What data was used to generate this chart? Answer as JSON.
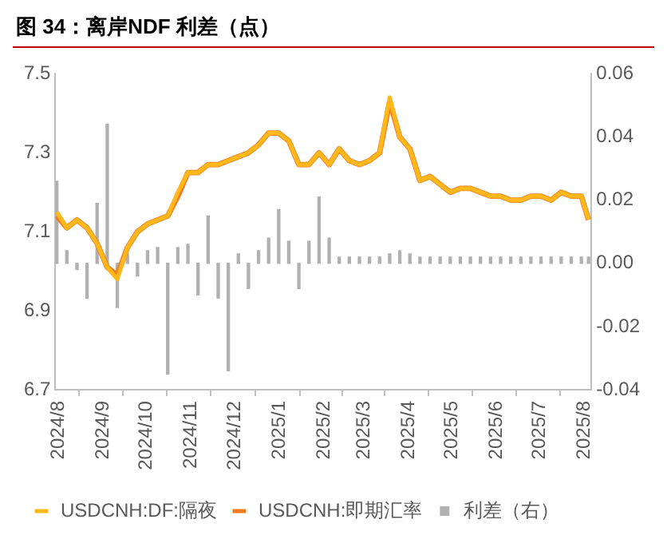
{
  "chart_data": {
    "type": "line",
    "title": "图 34：离岸NDF 利差（点）",
    "legend": "bottom",
    "grid": false,
    "marker": "none",
    "xlim": [
      "2024-07-31",
      "2025-08-07"
    ],
    "xticks": [
      {
        "value": "2024-08-01",
        "label": "2024/8"
      },
      {
        "value": "2024-09-01",
        "label": "2024/9"
      },
      {
        "value": "2024-10-01",
        "label": "2024/10"
      },
      {
        "value": "2024-11-01",
        "label": "2024/11"
      },
      {
        "value": "2024-12-01",
        "label": "2024/12"
      },
      {
        "value": "2025-01-01",
        "label": "2025/1"
      },
      {
        "value": "2025-02-01",
        "label": "2025/2"
      },
      {
        "value": "2025-03-01",
        "label": "2025/3"
      },
      {
        "value": "2025-04-01",
        "label": "2025/4"
      },
      {
        "value": "2025-05-01",
        "label": "2025/5"
      },
      {
        "value": "2025-06-01",
        "label": "2025/6"
      },
      {
        "value": "2025-07-01",
        "label": "2025/7"
      },
      {
        "value": "2025-08-01",
        "label": "2025/8"
      }
    ],
    "ylim": [
      6.7,
      7.5
    ],
    "yticks": [
      6.7,
      6.9,
      7.1,
      7.3,
      7.5
    ],
    "y2lim": [
      -0.04,
      0.06
    ],
    "y2ticks": [
      -0.04,
      -0.02,
      {
        "value": 0,
        "label": "0.00"
      },
      0.02,
      0.04,
      0.06
    ],
    "x": [
      "2024-08-01",
      "2024-08-08",
      "2024-08-15",
      "2024-08-22",
      "2024-08-29",
      "2024-09-05",
      "2024-09-12",
      "2024-09-19",
      "2024-09-26",
      "2024-10-03",
      "2024-10-10",
      "2024-10-17",
      "2024-10-24",
      "2024-10-31",
      "2024-11-07",
      "2024-11-14",
      "2024-11-21",
      "2024-11-28",
      "2024-12-05",
      "2024-12-12",
      "2024-12-19",
      "2024-12-26",
      "2025-01-02",
      "2025-01-09",
      "2025-01-16",
      "2025-01-23",
      "2025-01-30",
      "2025-02-06",
      "2025-02-13",
      "2025-02-20",
      "2025-02-27",
      "2025-03-06",
      "2025-03-13",
      "2025-03-20",
      "2025-03-27",
      "2025-04-03",
      "2025-04-10",
      "2025-04-17",
      "2025-04-24",
      "2025-05-01",
      "2025-05-08",
      "2025-05-15",
      "2025-05-22",
      "2025-05-29",
      "2025-06-05",
      "2025-06-12",
      "2025-06-19",
      "2025-06-26",
      "2025-07-03",
      "2025-07-10",
      "2025-07-17",
      "2025-07-24",
      "2025-07-31",
      "2025-08-05"
    ],
    "series": [
      {
        "name": "利差（右）",
        "type": "bar",
        "axis": "y2",
        "color": "#b0b0b0",
        "values": [
          0.026,
          0.004,
          -0.002,
          -0.011,
          0.019,
          0.044,
          -0.014,
          0.003,
          -0.004,
          0.004,
          0.005,
          -0.035,
          0.005,
          0.006,
          -0.01,
          0.015,
          -0.011,
          -0.034,
          0.003,
          -0.008,
          0.004,
          0.008,
          0.017,
          0.007,
          -0.008,
          0.007,
          0.021,
          0.008,
          0.002,
          0.002,
          0.002,
          0.002,
          0.002,
          0.003,
          0.004,
          0.003,
          0.002,
          0.002,
          0.002,
          0.002,
          0.002,
          0.002,
          0.002,
          0.002,
          0.002,
          0.002,
          0.002,
          0.002,
          0.002,
          0.002,
          0.002,
          0.002,
          0.002,
          0.002
        ]
      },
      {
        "name": "USDCNH:即期汇率",
        "color": "#f07c1e",
        "values": [
          7.14,
          7.11,
          7.13,
          7.11,
          7.07,
          7.01,
          6.99,
          7.06,
          7.1,
          7.12,
          7.13,
          7.14,
          7.19,
          7.25,
          7.25,
          7.27,
          7.27,
          7.28,
          7.29,
          7.3,
          7.32,
          7.35,
          7.35,
          7.33,
          7.27,
          7.27,
          7.3,
          7.27,
          7.31,
          7.28,
          7.27,
          7.28,
          7.3,
          7.43,
          7.34,
          7.31,
          7.23,
          7.24,
          7.22,
          7.2,
          7.21,
          7.21,
          7.2,
          7.19,
          7.19,
          7.18,
          7.18,
          7.19,
          7.19,
          7.18,
          7.2,
          7.19,
          7.19,
          7.13
        ]
      },
      {
        "name": "USDCNH:DF:隔夜",
        "color": "#ffb81c",
        "values": [
          7.15,
          7.11,
          7.13,
          7.11,
          7.07,
          7.01,
          6.98,
          7.06,
          7.1,
          7.12,
          7.13,
          7.14,
          7.2,
          7.25,
          7.25,
          7.27,
          7.27,
          7.28,
          7.29,
          7.3,
          7.32,
          7.35,
          7.35,
          7.33,
          7.27,
          7.27,
          7.3,
          7.27,
          7.31,
          7.28,
          7.27,
          7.28,
          7.3,
          7.44,
          7.34,
          7.31,
          7.23,
          7.24,
          7.22,
          7.2,
          7.21,
          7.21,
          7.2,
          7.19,
          7.19,
          7.18,
          7.18,
          7.19,
          7.19,
          7.18,
          7.2,
          7.19,
          7.19,
          7.13
        ]
      }
    ]
  }
}
